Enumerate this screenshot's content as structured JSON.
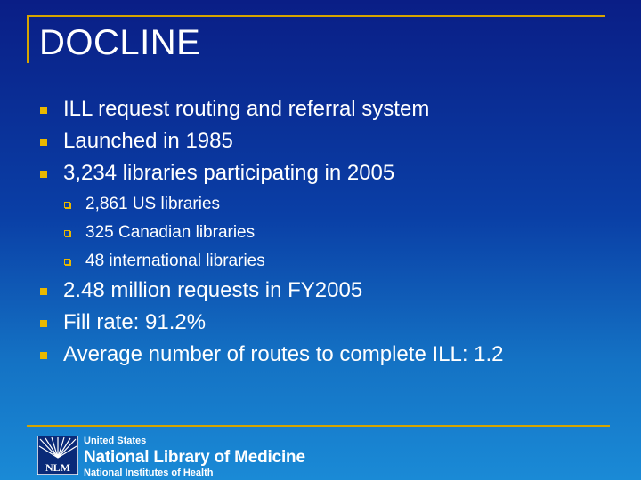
{
  "slide": {
    "title": "DOCLINE",
    "bullets": [
      {
        "text": "ILL request routing and referral system"
      },
      {
        "text": "Launched in 1985"
      },
      {
        "text": "3,234 libraries participating in 2005",
        "subitems": [
          "2,861 US libraries",
          "325 Canadian libraries",
          "48 international libraries"
        ]
      },
      {
        "text": "2.48 million requests in FY2005"
      },
      {
        "text": "Fill rate: 91.2%"
      },
      {
        "text": "Average number of routes to complete ILL:  1.2"
      }
    ]
  },
  "footer": {
    "logo_text": "NLM",
    "line1": "United States",
    "line2": "National Library of Medicine",
    "line3": "National Institutes of Health"
  },
  "colors": {
    "accent_gold": "#d6a400",
    "bullet_gold": "#e9b800",
    "background_top": "#0a1e86",
    "background_bottom": "#1a8ad6"
  }
}
